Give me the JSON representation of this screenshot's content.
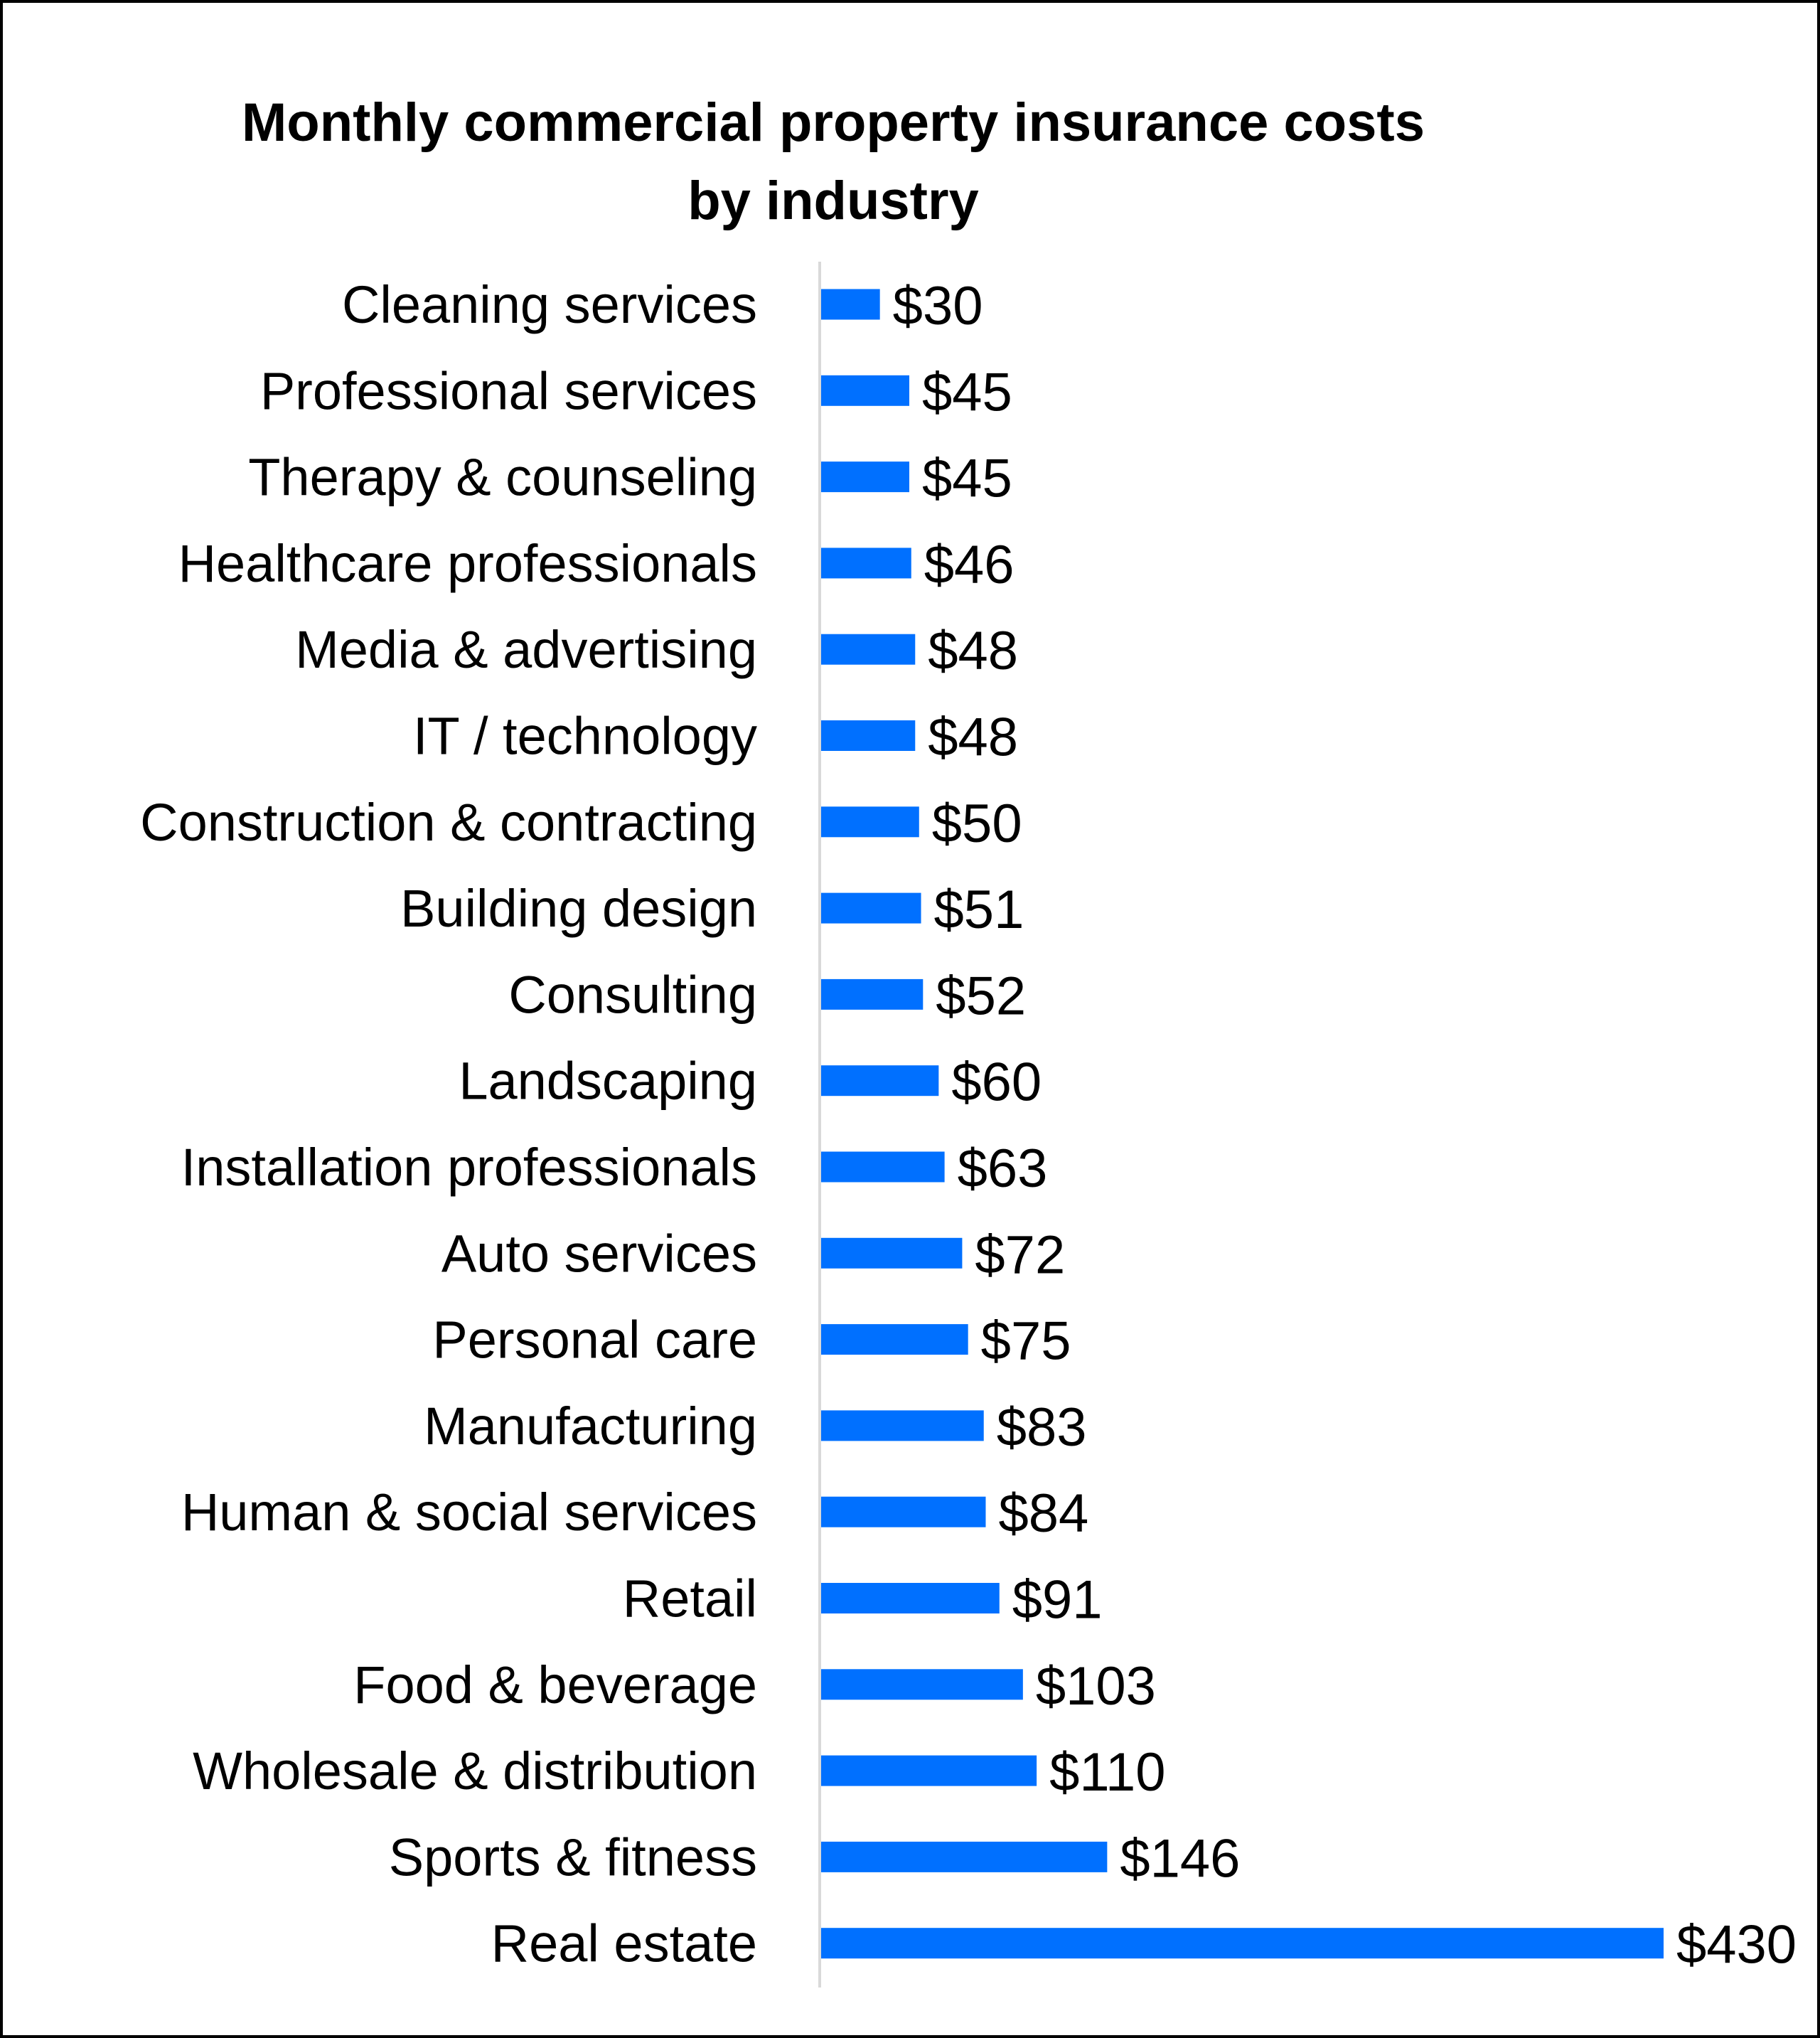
{
  "chart_data": {
    "type": "bar",
    "orientation": "horizontal",
    "title": "Monthly commercial property insurance costs by industry",
    "title_lines": [
      "Monthly commercial property insurance costs",
      "by industry"
    ],
    "categories": [
      "Cleaning services",
      "Professional services",
      "Therapy & counseling",
      "Healthcare professionals",
      "Media & advertising",
      "IT / technology",
      "Construction & contracting",
      "Building design",
      "Consulting",
      "Landscaping",
      "Installation professionals",
      "Auto services",
      "Personal care",
      "Manufacturing",
      "Human & social services",
      "Retail",
      "Food & beverage",
      "Wholesale & distribution",
      "Sports & fitness",
      "Real estate"
    ],
    "values": [
      30,
      45,
      45,
      46,
      48,
      48,
      50,
      51,
      52,
      60,
      63,
      72,
      75,
      83,
      84,
      91,
      103,
      110,
      146,
      430
    ],
    "data_labels": [
      "$30",
      "$45",
      "$45",
      "$46",
      "$48",
      "$48",
      "$50",
      "$51",
      "$52",
      "$60",
      "$63",
      "$72",
      "$75",
      "$83",
      "$84",
      "$91",
      "$103",
      "$110",
      "$146",
      "$430"
    ],
    "xlabel": "",
    "ylabel": "",
    "xlim": [
      0,
      430
    ],
    "grid": false,
    "legend": "none",
    "bar_color": "#0070FF",
    "axis_color": "#D9D9D9"
  }
}
